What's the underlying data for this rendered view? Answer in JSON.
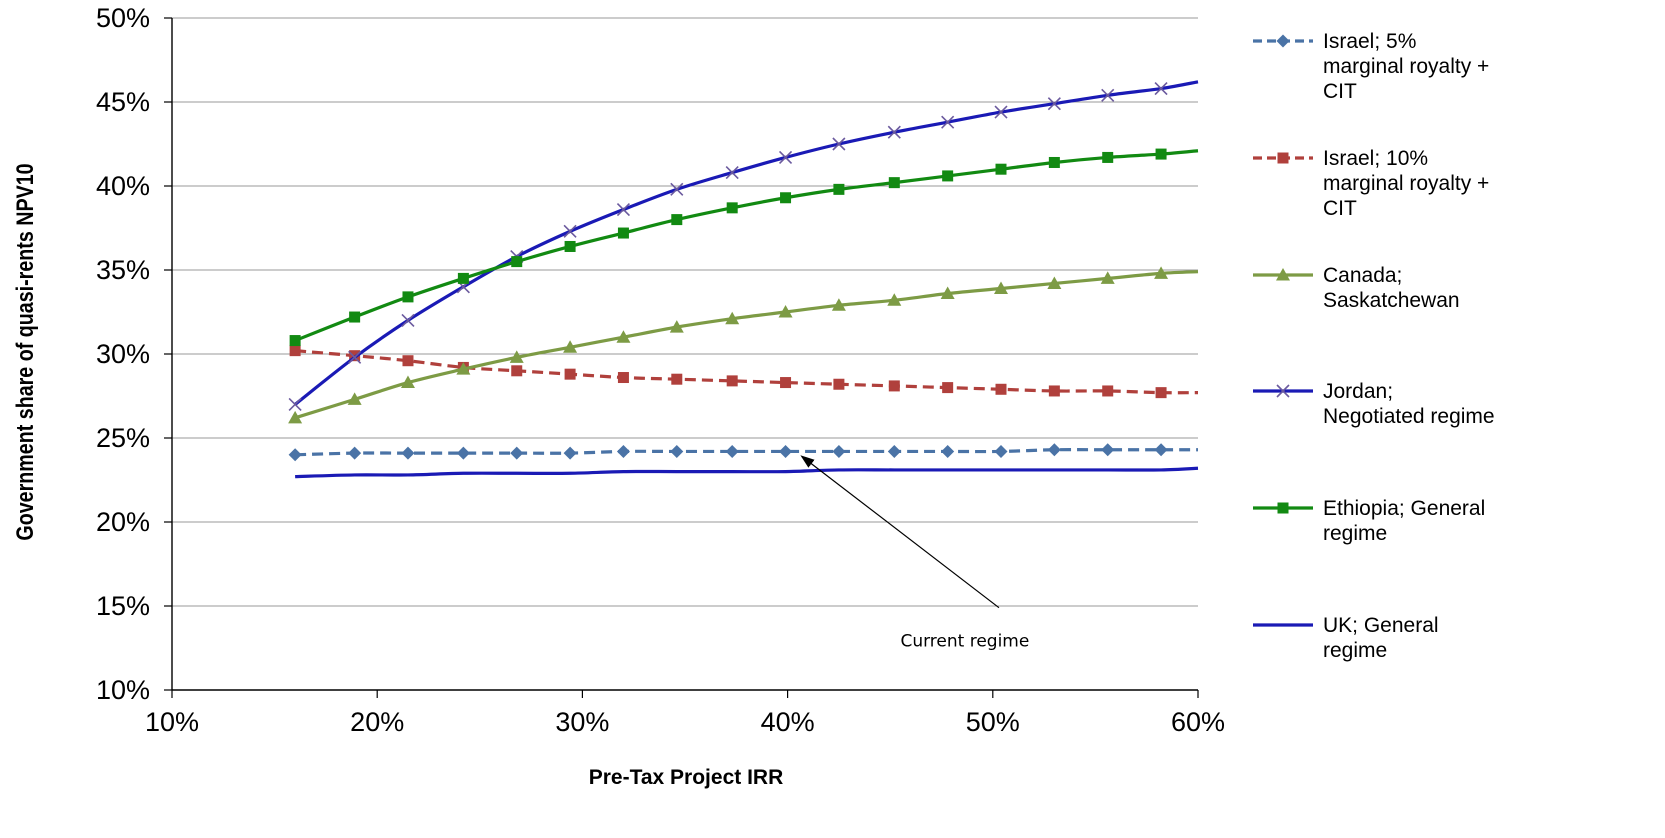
{
  "chart_data": {
    "type": "line",
    "title": "",
    "xlabel": "Pre-Tax Project IRR",
    "ylabel": "Government share of quasi-rents NPV10",
    "xlim": [
      0.1,
      0.6
    ],
    "ylim": [
      0.1,
      0.5
    ],
    "x_ticks": [
      "10%",
      "20%",
      "30%",
      "40%",
      "50%",
      "60%"
    ],
    "y_ticks": [
      "10%",
      "15%",
      "20%",
      "25%",
      "30%",
      "35%",
      "40%",
      "45%",
      "50%"
    ],
    "grid": "horizontal",
    "legend_position": "right",
    "x": [
      0.16,
      0.189,
      0.215,
      0.242,
      0.268,
      0.294,
      0.32,
      0.346,
      0.373,
      0.399,
      0.425,
      0.452,
      0.478,
      0.504,
      0.53,
      0.556,
      0.582
    ],
    "series": [
      {
        "name": "Israel; 5% marginal royalty + CIT",
        "legend_lines": [
          "Israel; 5%",
          "marginal royalty +",
          "CIT"
        ],
        "color": "#4A73A6",
        "dash": "dashed",
        "marker": "diamond",
        "values": [
          0.24,
          0.241,
          0.241,
          0.241,
          0.241,
          0.241,
          0.242,
          0.242,
          0.242,
          0.242,
          0.242,
          0.242,
          0.242,
          0.242,
          0.243,
          0.243,
          0.243
        ],
        "end": [
          0.6,
          0.243
        ]
      },
      {
        "name": "Israel; 10% marginal royalty + CIT",
        "legend_lines": [
          "Israel; 10%",
          "marginal royalty +",
          "CIT"
        ],
        "color": "#B0403C",
        "dash": "dashed",
        "marker": "square",
        "values": [
          0.302,
          0.299,
          0.296,
          0.292,
          0.29,
          0.288,
          0.286,
          0.285,
          0.284,
          0.283,
          0.282,
          0.281,
          0.28,
          0.279,
          0.278,
          0.278,
          0.277
        ],
        "end": [
          0.6,
          0.277
        ]
      },
      {
        "name": "Canada; Saskatchewan",
        "legend_lines": [
          "Canada;",
          "Saskatchewan"
        ],
        "color": "#7D9B45",
        "dash": "solid",
        "marker": "triangle",
        "values": [
          0.262,
          0.273,
          0.283,
          0.291,
          0.298,
          0.304,
          0.31,
          0.316,
          0.321,
          0.325,
          0.329,
          0.332,
          0.336,
          0.339,
          0.342,
          0.345,
          0.348
        ],
        "end": [
          0.6,
          0.349
        ]
      },
      {
        "name": "Jordan; Negotiated regime",
        "legend_lines": [
          "Jordan;",
          "Negotiated regime"
        ],
        "color": "#1A1AB5",
        "marker_color": "#6B5A9E",
        "dash": "solid",
        "marker": "x",
        "values": [
          0.27,
          0.298,
          0.32,
          0.34,
          0.358,
          0.373,
          0.386,
          0.398,
          0.408,
          0.417,
          0.425,
          0.432,
          0.438,
          0.444,
          0.449,
          0.454,
          0.458
        ],
        "end": [
          0.6,
          0.462
        ]
      },
      {
        "name": "Ethiopia; General regime",
        "legend_lines": [
          "Ethiopia; General",
          "regime"
        ],
        "color": "#128A12",
        "dash": "solid",
        "marker": "square",
        "values": [
          0.308,
          0.322,
          0.334,
          0.345,
          0.355,
          0.364,
          0.372,
          0.38,
          0.387,
          0.393,
          0.398,
          0.402,
          0.406,
          0.41,
          0.414,
          0.417,
          0.419
        ],
        "end": [
          0.6,
          0.421
        ]
      },
      {
        "name": "UK; General regime",
        "legend_lines": [
          "UK; General",
          "regime"
        ],
        "color": "#1A1AB5",
        "dash": "solid",
        "marker": "none",
        "values": [
          0.227,
          0.228,
          0.228,
          0.229,
          0.229,
          0.229,
          0.23,
          0.23,
          0.23,
          0.23,
          0.231,
          0.231,
          0.231,
          0.231,
          0.231,
          0.231,
          0.231
        ],
        "end": [
          0.6,
          0.232
        ]
      }
    ],
    "annotation": {
      "text": "Current regime",
      "text_at": [
        0.455,
        0.126
      ],
      "arrow_from": [
        0.503,
        0.149
      ],
      "arrow_to": [
        0.407,
        0.239
      ]
    }
  }
}
